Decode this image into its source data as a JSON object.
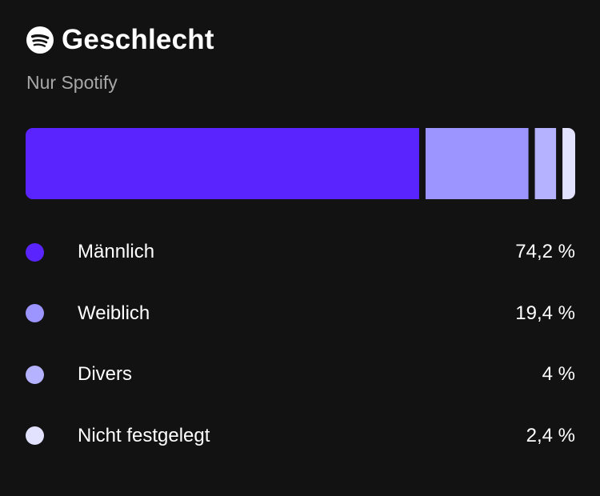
{
  "header": {
    "title": "Geschlecht",
    "subtitle": "Nur Spotify",
    "logo_icon": "spotify-logo-icon"
  },
  "chart_data": {
    "type": "bar",
    "orientation": "horizontal-stacked-100",
    "title": "Geschlecht",
    "subtitle": "Nur Spotify",
    "categories": [
      "Männlich",
      "Weiblich",
      "Divers",
      "Nicht festgelegt"
    ],
    "values": [
      74.2,
      19.4,
      4,
      2.4
    ],
    "value_labels": [
      "74,2 %",
      "19,4 %",
      "4 %",
      "2,4 %"
    ],
    "colors": [
      "#5a24ff",
      "#9c94ff",
      "#b5b2ff",
      "#e2e2ff"
    ],
    "unit": "%",
    "legend_position": "bottom"
  }
}
